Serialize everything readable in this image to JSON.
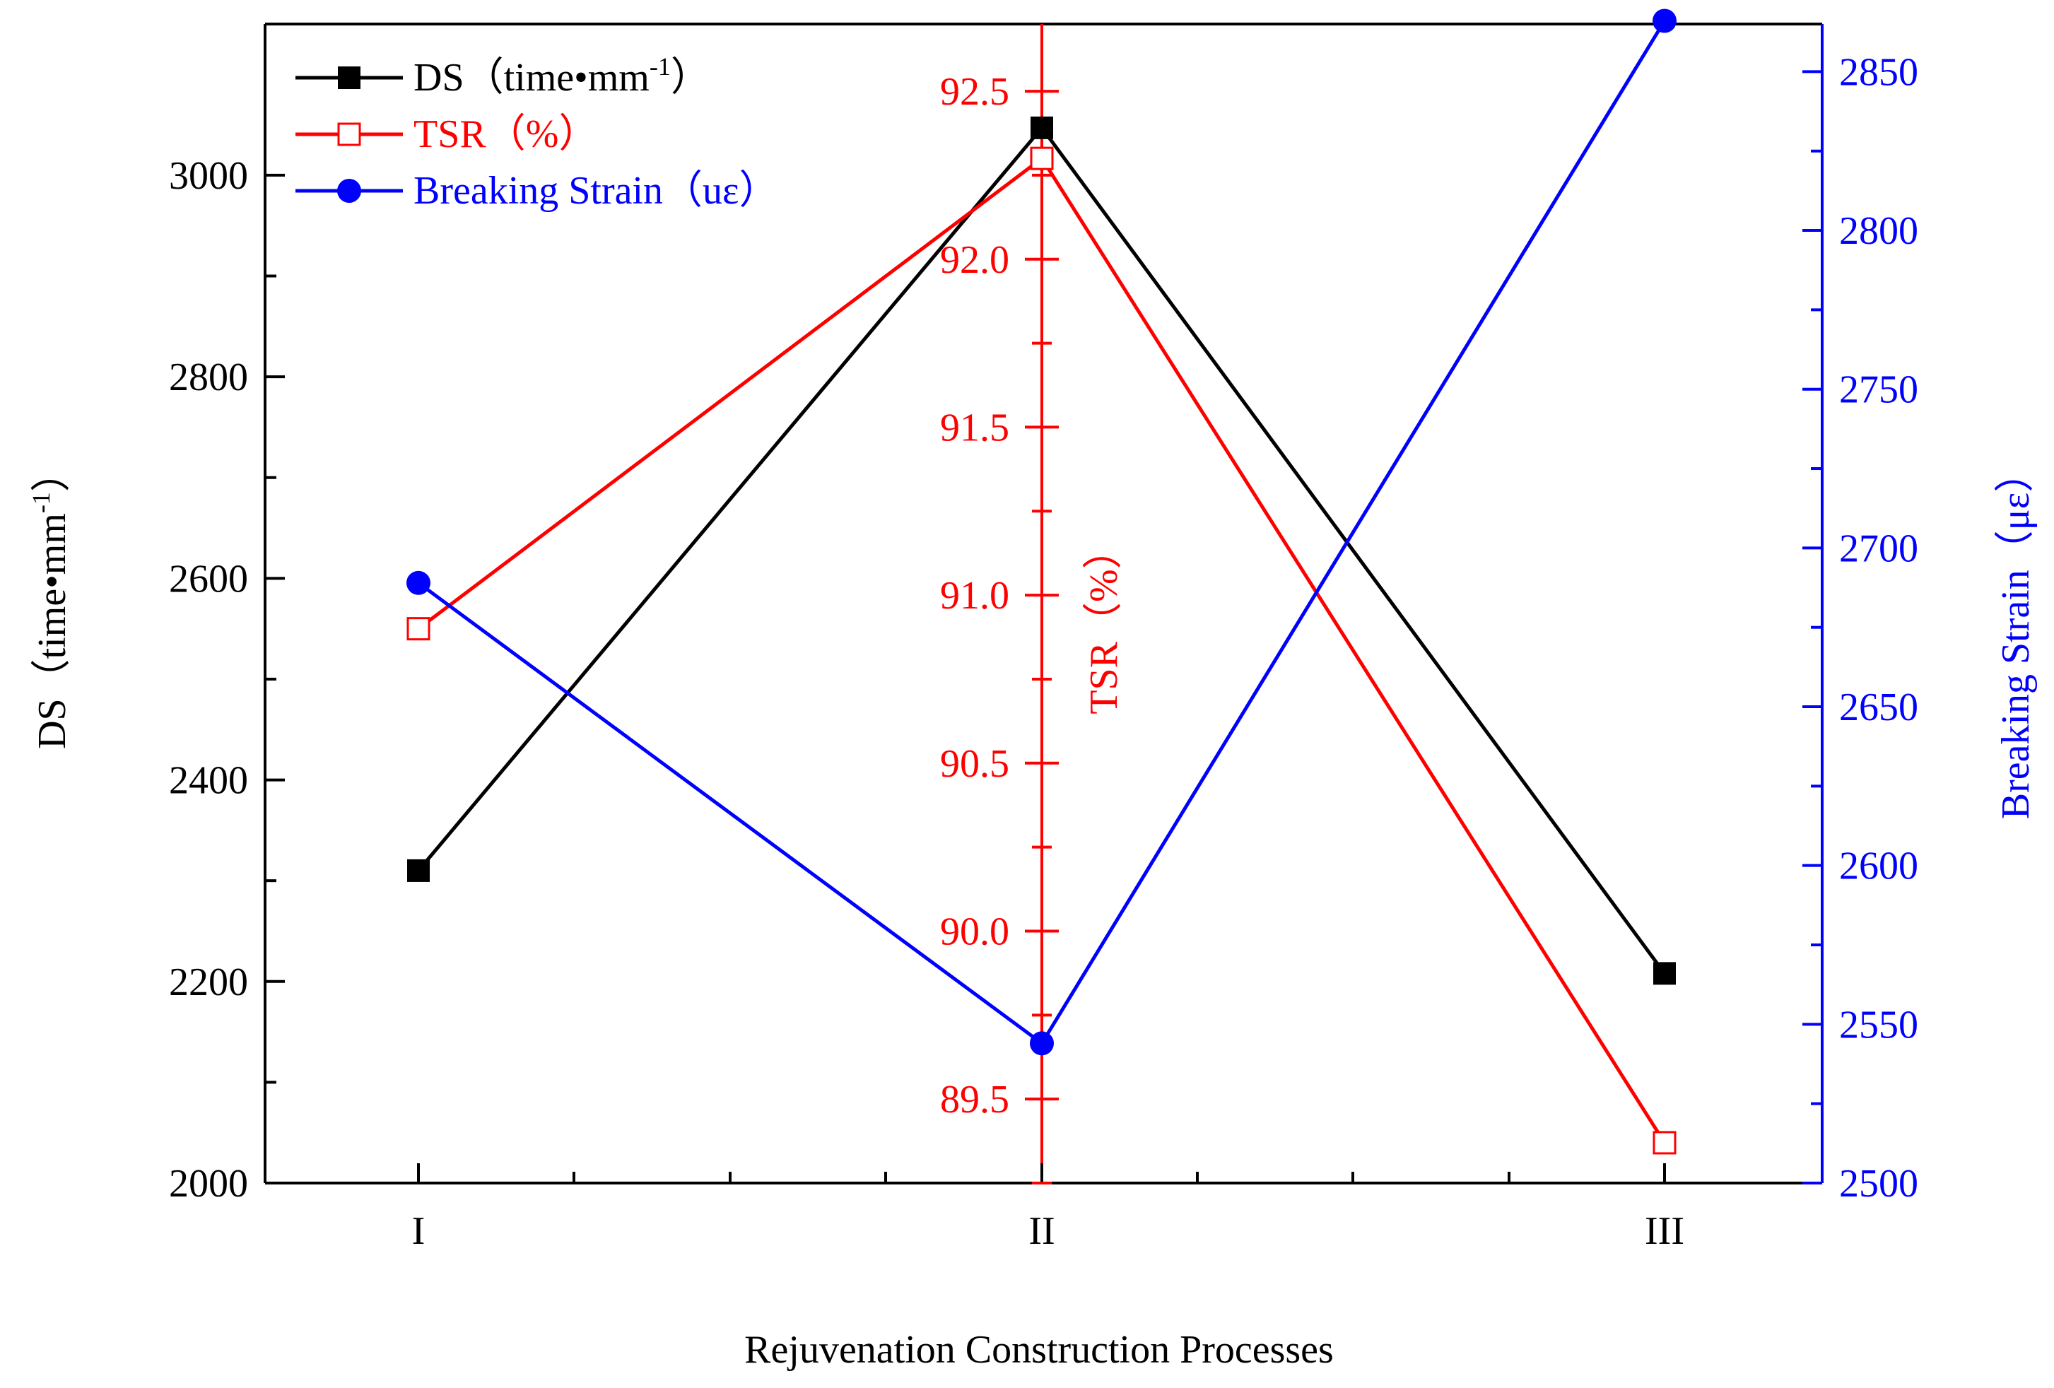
{
  "chart_data": {
    "type": "line",
    "xlabel": "Rejuvenation Construction Processes",
    "categories": [
      "I",
      "II",
      "III"
    ],
    "axes": {
      "left": {
        "label": "DS（time•mm-1）",
        "label_main": "DS（time•mm",
        "label_sup": "-1",
        "label_close": "）",
        "range": [
          2000,
          3150
        ],
        "ticks": [
          2000,
          2200,
          2400,
          2600,
          2800,
          3000
        ],
        "color": "#000000"
      },
      "middle": {
        "label": "TSR（%）",
        "range": [
          89.25,
          92.7
        ],
        "ticks": [
          "89.5",
          "90.0",
          "90.5",
          "91.0",
          "91.5",
          "92.0",
          "92.5"
        ],
        "color": "#ff0000"
      },
      "right": {
        "label": "Breaking Strain（με）",
        "range": [
          2500,
          2865
        ],
        "ticks": [
          2500,
          2550,
          2600,
          2650,
          2700,
          2750,
          2800,
          2850
        ],
        "color": "#0000ff"
      }
    },
    "series": [
      {
        "name": "DS（time•mm-1）",
        "legend_main": "DS（time•mm",
        "legend_sup": "-1",
        "legend_close": "）",
        "axis": "left",
        "color": "#000000",
        "marker": "filled-square",
        "values": [
          2310,
          3047,
          2208
        ]
      },
      {
        "name": "TSR（%）",
        "legend_main": "TSR（%）",
        "axis": "middle",
        "color": "#ff0000",
        "marker": "open-square",
        "values": [
          90.9,
          92.3,
          89.37
        ]
      },
      {
        "name": "Breaking Strain（uε）",
        "legend_main": "Breaking Strain（uε）",
        "axis": "right",
        "color": "#0000ff",
        "marker": "filled-circle",
        "values": [
          2689,
          2544,
          2866
        ]
      }
    ]
  }
}
